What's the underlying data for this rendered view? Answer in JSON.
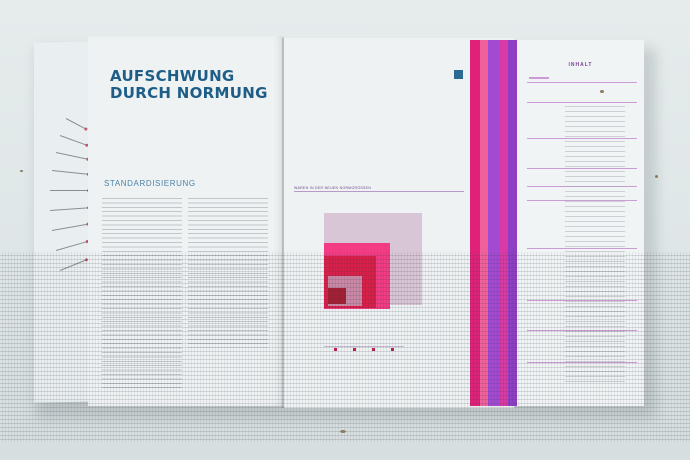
{
  "spread": {
    "left_page": {
      "headline": "AUFSCHWUNG DURCH NORMUNG",
      "subhead": "STANDARDISIERUNG"
    },
    "right_page": {
      "figure_label": "WAREN IN DER NEUEN NORMGRÖSSEN"
    },
    "toc": {
      "title": "INHALT"
    }
  },
  "colors": {
    "headline": "#1d5d86",
    "magenta": "#e0217a",
    "violet": "#a24bd0",
    "pink": "#f0609a",
    "crimson": "#c01f55",
    "square_light": "#d8c5d6",
    "square_pink": "#f23b83",
    "square_red": "#d81f4a",
    "square_dark": "#a32034",
    "square_mauve": "#c988a6"
  }
}
